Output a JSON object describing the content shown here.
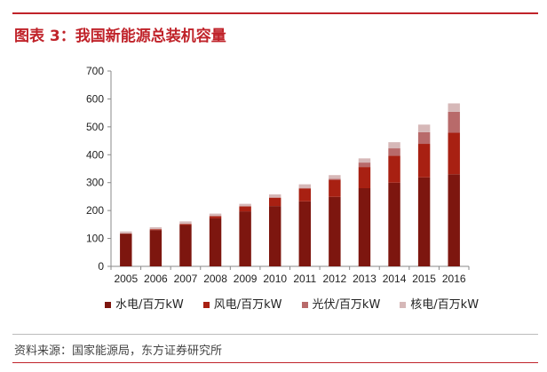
{
  "title": "图表 3：我国新能源总装机容量",
  "source": "资料来源：国家能源局，东方证券研究所",
  "chart_data": {
    "type": "bar",
    "stacked": true,
    "categories": [
      "2005",
      "2006",
      "2007",
      "2008",
      "2009",
      "2010",
      "2011",
      "2012",
      "2013",
      "2014",
      "2015",
      "2016"
    ],
    "series": [
      {
        "name": "水电/百万kW",
        "color": "#7d160f",
        "values": [
          117,
          130,
          148,
          172,
          197,
          216,
          233,
          249,
          280,
          300,
          319,
          330
        ]
      },
      {
        "name": "风电/百万kW",
        "color": "#a82012",
        "values": [
          1,
          3,
          4,
          8,
          18,
          30,
          46,
          61,
          76,
          96,
          120,
          149
        ]
      },
      {
        "name": "光伏/百万kW",
        "color": "#b86a6a",
        "values": [
          0,
          0,
          0,
          0,
          0,
          1,
          2,
          4,
          16,
          27,
          42,
          75
        ]
      },
      {
        "name": "核电/百万kW",
        "color": "#d6b8b8",
        "values": [
          7,
          7,
          9,
          9,
          9,
          11,
          13,
          13,
          15,
          22,
          27,
          30
        ]
      }
    ],
    "yticks": [
      0,
      100,
      200,
      300,
      400,
      500,
      600,
      700
    ],
    "ylim": [
      0,
      700
    ],
    "grid": false,
    "legend": "bottom"
  }
}
